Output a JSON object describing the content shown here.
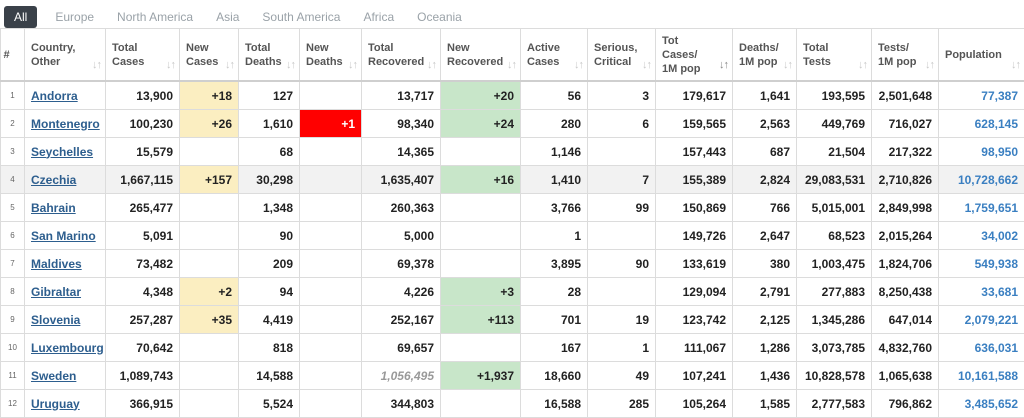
{
  "tabs": [
    "All",
    "Europe",
    "North America",
    "Asia",
    "South America",
    "Africa",
    "Oceania"
  ],
  "active_tab": "All",
  "colors": {
    "new_cases_bg": "#fbeec1",
    "new_deaths_bg": "#ff0000",
    "new_recovered_bg": "#c8e6c9",
    "link": "#2d5e8e",
    "population": "#3a7fc1"
  },
  "headers": {
    "idx": "#",
    "country": "Country, Other",
    "total_cases": "Total Cases",
    "new_cases": "New Cases",
    "total_deaths": "Total Deaths",
    "new_deaths": "New Deaths",
    "total_recovered": "Total Recovered",
    "new_recovered": "New Recovered",
    "active_cases": "Active Cases",
    "serious": "Serious, Critical",
    "tot_cases_1m": "Tot Cases/ 1M pop",
    "deaths_1m": "Deaths/ 1M pop",
    "total_tests": "Total Tests",
    "tests_1m": "Tests/ 1M pop",
    "population": "Population"
  },
  "rows": [
    {
      "idx": "1",
      "country": "Andorra",
      "total_cases": "13,900",
      "new_cases": "+18",
      "total_deaths": "127",
      "new_deaths": "",
      "total_recovered": "13,717",
      "new_recovered": "+20",
      "active_cases": "56",
      "serious": "3",
      "tot_cases_1m": "179,617",
      "deaths_1m": "1,641",
      "total_tests": "193,595",
      "tests_1m": "2,501,648",
      "population": "77,387"
    },
    {
      "idx": "2",
      "country": "Montenegro",
      "total_cases": "100,230",
      "new_cases": "+26",
      "total_deaths": "1,610",
      "new_deaths": "+1",
      "total_recovered": "98,340",
      "new_recovered": "+24",
      "active_cases": "280",
      "serious": "6",
      "tot_cases_1m": "159,565",
      "deaths_1m": "2,563",
      "total_tests": "449,769",
      "tests_1m": "716,027",
      "population": "628,145"
    },
    {
      "idx": "3",
      "country": "Seychelles",
      "total_cases": "15,579",
      "new_cases": "",
      "total_deaths": "68",
      "new_deaths": "",
      "total_recovered": "14,365",
      "new_recovered": "",
      "active_cases": "1,146",
      "serious": "",
      "tot_cases_1m": "157,443",
      "deaths_1m": "687",
      "total_tests": "21,504",
      "tests_1m": "217,322",
      "population": "98,950"
    },
    {
      "idx": "4",
      "country": "Czechia",
      "total_cases": "1,667,115",
      "new_cases": "+157",
      "total_deaths": "30,298",
      "new_deaths": "",
      "total_recovered": "1,635,407",
      "new_recovered": "+16",
      "active_cases": "1,410",
      "serious": "7",
      "tot_cases_1m": "155,389",
      "deaths_1m": "2,824",
      "total_tests": "29,083,531",
      "tests_1m": "2,710,826",
      "population": "10,728,662"
    },
    {
      "idx": "5",
      "country": "Bahrain",
      "total_cases": "265,477",
      "new_cases": "",
      "total_deaths": "1,348",
      "new_deaths": "",
      "total_recovered": "260,363",
      "new_recovered": "",
      "active_cases": "3,766",
      "serious": "99",
      "tot_cases_1m": "150,869",
      "deaths_1m": "766",
      "total_tests": "5,015,001",
      "tests_1m": "2,849,998",
      "population": "1,759,651"
    },
    {
      "idx": "6",
      "country": "San Marino",
      "total_cases": "5,091",
      "new_cases": "",
      "total_deaths": "90",
      "new_deaths": "",
      "total_recovered": "5,000",
      "new_recovered": "",
      "active_cases": "1",
      "serious": "",
      "tot_cases_1m": "149,726",
      "deaths_1m": "2,647",
      "total_tests": "68,523",
      "tests_1m": "2,015,264",
      "population": "34,002"
    },
    {
      "idx": "7",
      "country": "Maldives",
      "total_cases": "73,482",
      "new_cases": "",
      "total_deaths": "209",
      "new_deaths": "",
      "total_recovered": "69,378",
      "new_recovered": "",
      "active_cases": "3,895",
      "serious": "90",
      "tot_cases_1m": "133,619",
      "deaths_1m": "380",
      "total_tests": "1,003,475",
      "tests_1m": "1,824,706",
      "population": "549,938"
    },
    {
      "idx": "8",
      "country": "Gibraltar",
      "total_cases": "4,348",
      "new_cases": "+2",
      "total_deaths": "94",
      "new_deaths": "",
      "total_recovered": "4,226",
      "new_recovered": "+3",
      "active_cases": "28",
      "serious": "",
      "tot_cases_1m": "129,094",
      "deaths_1m": "2,791",
      "total_tests": "277,883",
      "tests_1m": "8,250,438",
      "population": "33,681"
    },
    {
      "idx": "9",
      "country": "Slovenia",
      "total_cases": "257,287",
      "new_cases": "+35",
      "total_deaths": "4,419",
      "new_deaths": "",
      "total_recovered": "252,167",
      "new_recovered": "+113",
      "active_cases": "701",
      "serious": "19",
      "tot_cases_1m": "123,742",
      "deaths_1m": "2,125",
      "total_tests": "1,345,286",
      "tests_1m": "647,014",
      "population": "2,079,221"
    },
    {
      "idx": "10",
      "country": "Luxembourg",
      "total_cases": "70,642",
      "new_cases": "",
      "total_deaths": "818",
      "new_deaths": "",
      "total_recovered": "69,657",
      "new_recovered": "",
      "active_cases": "167",
      "serious": "1",
      "tot_cases_1m": "111,067",
      "deaths_1m": "1,286",
      "total_tests": "3,073,785",
      "tests_1m": "4,832,760",
      "population": "636,031"
    },
    {
      "idx": "11",
      "country": "Sweden",
      "total_cases": "1,089,743",
      "new_cases": "",
      "total_deaths": "14,588",
      "new_deaths": "",
      "total_recovered": "1,056,495",
      "new_recovered": "+1,937",
      "active_cases": "18,660",
      "serious": "49",
      "tot_cases_1m": "107,241",
      "deaths_1m": "1,436",
      "total_tests": "10,828,578",
      "tests_1m": "1,065,638",
      "population": "10,161,588"
    },
    {
      "idx": "12",
      "country": "Uruguay",
      "total_cases": "366,915",
      "new_cases": "",
      "total_deaths": "5,524",
      "new_deaths": "",
      "total_recovered": "344,803",
      "new_recovered": "",
      "active_cases": "16,588",
      "serious": "285",
      "tot_cases_1m": "105,264",
      "deaths_1m": "1,585",
      "total_tests": "2,777,583",
      "tests_1m": "796,862",
      "population": "3,485,652"
    }
  ],
  "highlighted_row": "4",
  "italic_recovered_row": "11"
}
